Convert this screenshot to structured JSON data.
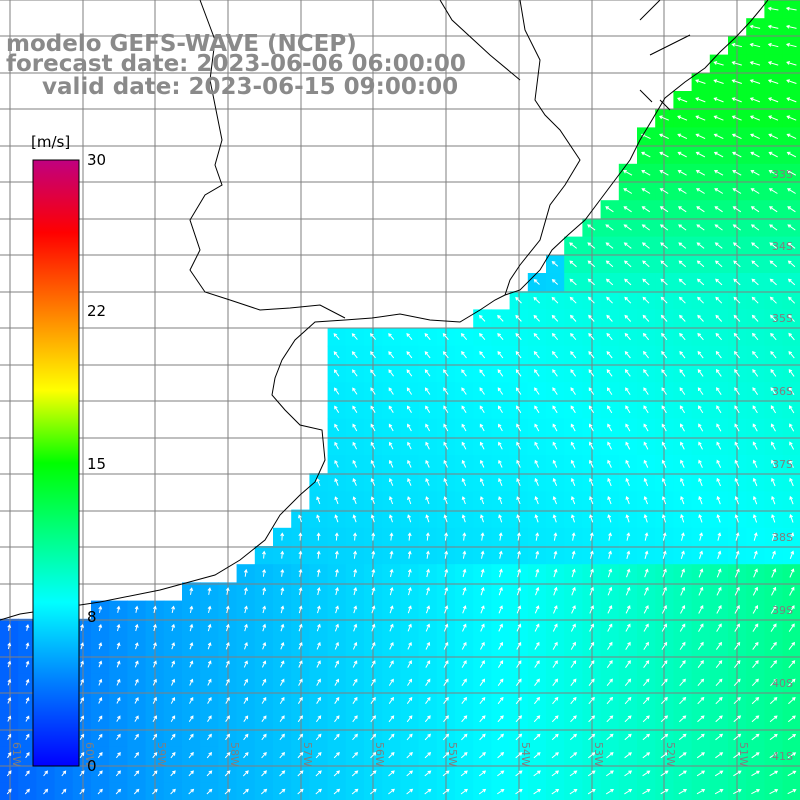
{
  "header": {
    "model": "modelo GEFS-WAVE (NCEP)",
    "forecast": "forecast date: 2023-06-06 06:00:00",
    "valid": "valid date: 2023-06-15 09:00:00"
  },
  "colorbar": {
    "unit": "[m/s]",
    "ticks": [
      {
        "value": 30,
        "label": "30"
      },
      {
        "value": 22,
        "label": "22"
      },
      {
        "value": 15,
        "label": "15"
      },
      {
        "value": 8,
        "label": "8"
      },
      {
        "value": 0,
        "label": "0"
      }
    ],
    "range": [
      0,
      30
    ],
    "colors": [
      "#0000ff",
      "#00a0ff",
      "#00ffff",
      "#00ff00",
      "#ffff00",
      "#ff8000",
      "#ff0000",
      "#c00080"
    ]
  },
  "map": {
    "lat_labels": [
      "33S",
      "34S",
      "35S",
      "36S",
      "37S",
      "38S",
      "39S",
      "40S",
      "41S"
    ],
    "lon_labels": [
      "61W",
      "60W",
      "59W",
      "58W",
      "57W",
      "56W",
      "55W",
      "54W",
      "53W",
      "52W",
      "51W"
    ],
    "field": "wind speed with direction arrows",
    "land_color": "#ffffff",
    "grid_color": "#7f7f7f",
    "arrow_color": "#ffffff"
  }
}
